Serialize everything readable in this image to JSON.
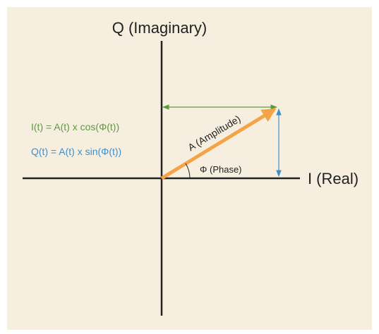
{
  "axes": {
    "vertical": "Q (Imaginary)",
    "horizontal": "I (Real)"
  },
  "equations": {
    "in_phase": "I(t) = A(t) x cos(Φ(t))",
    "quadrature": "Q(t) = A(t) x sin(Φ(t))"
  },
  "vector": {
    "amplitude": "A (Amplitude)",
    "phase": "Φ (Phase)"
  }
}
